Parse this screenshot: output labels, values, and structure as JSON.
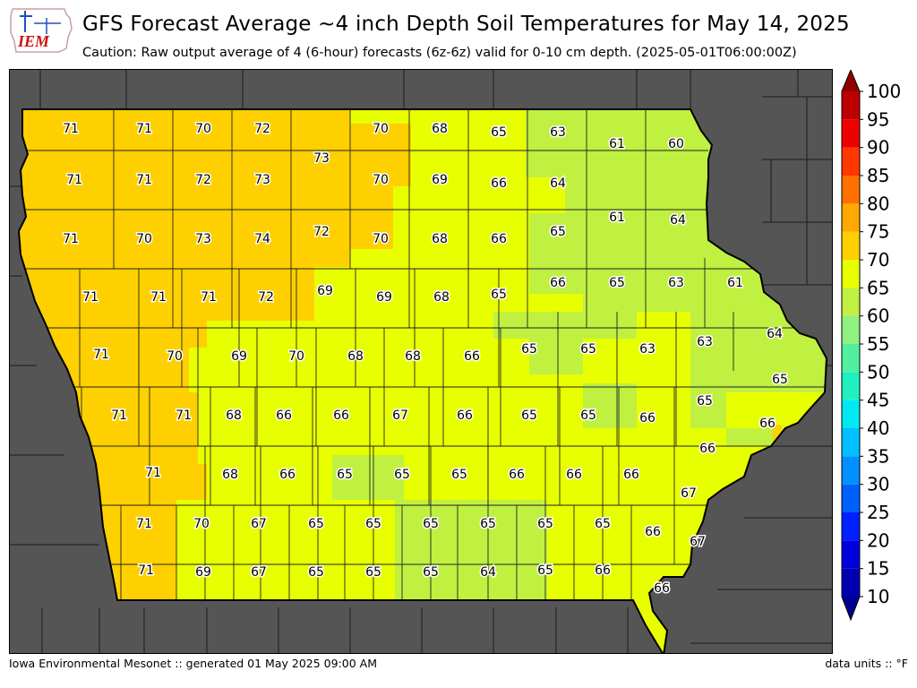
{
  "header": {
    "title": "GFS Forecast Average ~4 inch Depth Soil Temperatures for May 14, 2025",
    "subtitle": "Caution: Raw output average of 4 (6-hour) forecasts (6z-6z) valid for 0-10 cm depth. (2025-05-01T06:00:00Z)"
  },
  "logo": {
    "text": "IEM"
  },
  "footer": {
    "left": "Iowa Environmental Mesonet :: generated 01 May 2025 09:00 AM",
    "right": "data units :: °F"
  },
  "colors": {
    "ocean_gray": "#555555",
    "county_line": "#000000"
  },
  "colorbar": {
    "ticks": [
      "100",
      "95",
      "90",
      "85",
      "80",
      "75",
      "70",
      "65",
      "60",
      "55",
      "50",
      "45",
      "40",
      "35",
      "30",
      "25",
      "20",
      "15",
      "10"
    ],
    "bins": [
      {
        "from": 10,
        "to": 15,
        "color": "#0000b0"
      },
      {
        "from": 15,
        "to": 20,
        "color": "#0000dd"
      },
      {
        "from": 20,
        "to": 25,
        "color": "#0020ff"
      },
      {
        "from": 25,
        "to": 30,
        "color": "#0060ff"
      },
      {
        "from": 30,
        "to": 35,
        "color": "#0090ff"
      },
      {
        "from": 35,
        "to": 40,
        "color": "#00c0ff"
      },
      {
        "from": 40,
        "to": 45,
        "color": "#00e8f0"
      },
      {
        "from": 45,
        "to": 50,
        "color": "#20f0c0"
      },
      {
        "from": 50,
        "to": 55,
        "color": "#50f0a0"
      },
      {
        "from": 55,
        "to": 60,
        "color": "#90f080"
      },
      {
        "from": 60,
        "to": 65,
        "color": "#c0f040"
      },
      {
        "from": 65,
        "to": 70,
        "color": "#e8ff00"
      },
      {
        "from": 70,
        "to": 75,
        "color": "#ffd000"
      },
      {
        "from": 75,
        "to": 80,
        "color": "#ffa800"
      },
      {
        "from": 80,
        "to": 85,
        "color": "#ff7000"
      },
      {
        "from": 85,
        "to": 90,
        "color": "#ff3800"
      },
      {
        "from": 90,
        "to": 95,
        "color": "#ee0000"
      },
      {
        "from": 95,
        "to": 100,
        "color": "#c00000"
      }
    ],
    "above_color": "#900000",
    "below_color": "#000090"
  },
  "county_values": [
    "71",
    "71",
    "70",
    "72",
    "73",
    "70",
    "68",
    "65",
    "63",
    "61",
    "60",
    "71",
    "71",
    "72",
    "73",
    "70",
    "69",
    "66",
    "64",
    "61",
    "64",
    "71",
    "70",
    "73",
    "74",
    "72",
    "70",
    "68",
    "66",
    "65",
    "71",
    "71",
    "71",
    "72",
    "69",
    "69",
    "68",
    "65",
    "66",
    "65",
    "63",
    "61",
    "71",
    "70",
    "69",
    "70",
    "68",
    "68",
    "66",
    "65",
    "65",
    "63",
    "63",
    "64",
    "65",
    "71",
    "71",
    "68",
    "66",
    "66",
    "67",
    "66",
    "65",
    "65",
    "66",
    "65",
    "66",
    "71",
    "68",
    "66",
    "65",
    "65",
    "65",
    "66",
    "66",
    "66",
    "66",
    "67",
    "71",
    "70",
    "67",
    "65",
    "65",
    "65",
    "65",
    "65",
    "65",
    "66",
    "67",
    "71",
    "69",
    "67",
    "65",
    "65",
    "65",
    "64",
    "65",
    "66",
    "66"
  ]
}
